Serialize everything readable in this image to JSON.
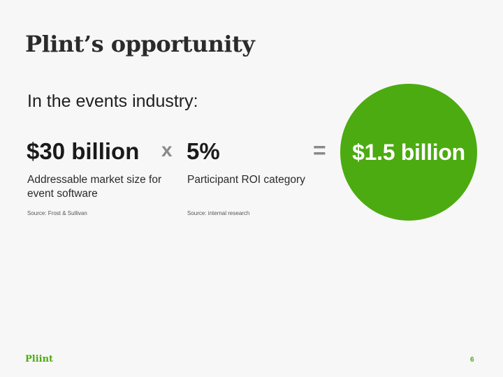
{
  "title": "Plint’s opportunity",
  "intro": "In the events industry:",
  "equation": {
    "term1": {
      "value": "$30 billion",
      "description": "Addressable market size for event software",
      "source": "Source: Frost & Sullivan"
    },
    "operator": "x",
    "term2": {
      "value": "5%",
      "description": "Participant ROI category",
      "source": "Source: internal research"
    },
    "equals": "=",
    "result": {
      "value": "$1.5 billion",
      "color": "#4cab10"
    }
  },
  "footer": {
    "logo": "Pliint",
    "page_number": "6",
    "accent_color": "#4cab10"
  }
}
